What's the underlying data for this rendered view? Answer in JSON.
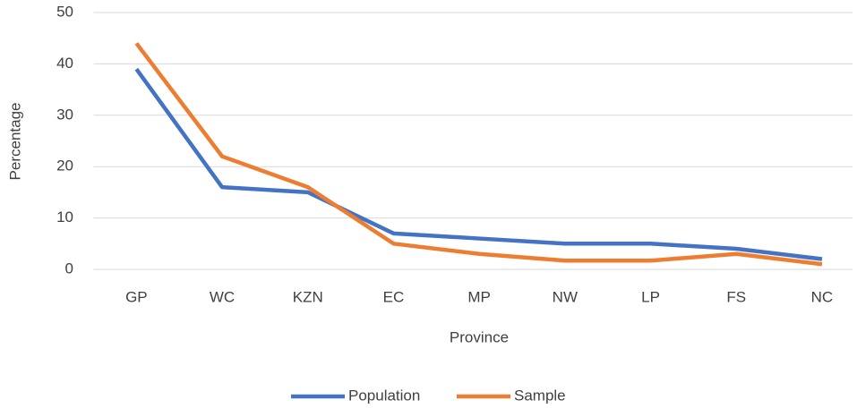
{
  "chart_data": {
    "type": "line",
    "x_label": "Province",
    "y_label": "Percentage",
    "categories": [
      "GP",
      "WC",
      "KZN",
      "EC",
      "MP",
      "NW",
      "LP",
      "FS",
      "NC"
    ],
    "series": [
      {
        "name": "Population",
        "color": "#4472c4",
        "values": [
          39,
          16,
          15,
          7,
          6,
          5,
          5,
          4,
          2
        ]
      },
      {
        "name": "Sample",
        "color": "#ed7d31",
        "values": [
          44,
          22,
          16,
          5,
          3,
          1.7,
          1.7,
          3,
          1
        ]
      }
    ],
    "ylim": [
      0,
      50
    ],
    "yticks": [
      0,
      10,
      20,
      30,
      40,
      50
    ],
    "grid": true,
    "legend": "bottom"
  }
}
